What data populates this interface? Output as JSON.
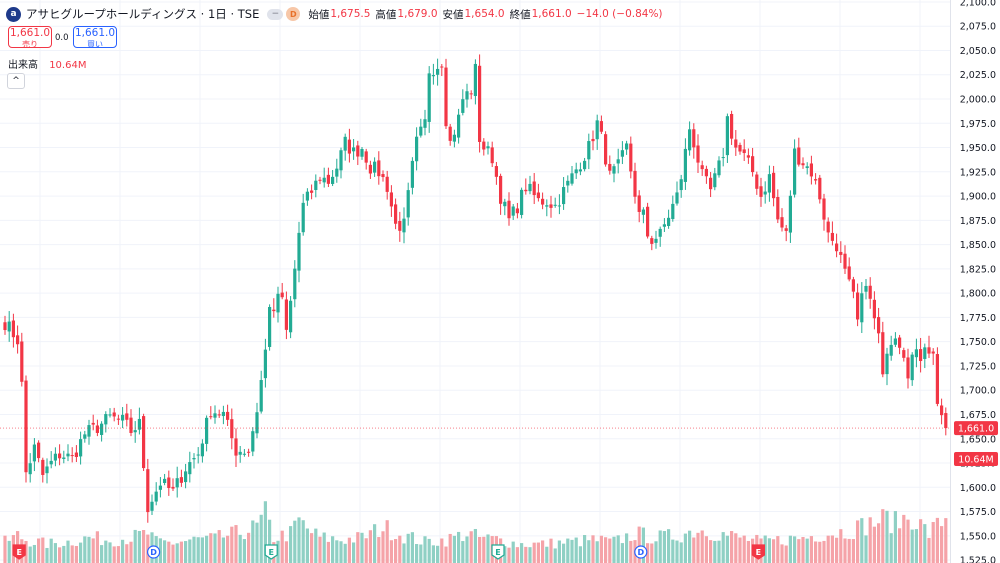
{
  "header": {
    "logo_glyph": "a",
    "title": "アサヒグループホールディングス · 1日 · TSE",
    "minus_glyph": "−",
    "badge": "D",
    "open_label": "始値",
    "open_value": "1,675.5",
    "high_label": "高値",
    "high_value": "1,679.0",
    "low_label": "安値",
    "low_value": "1,654.0",
    "close_label": "終値",
    "close_value": "1,661.0",
    "change": "−14.0 (−0.84%)"
  },
  "trade": {
    "sell_price": "1,661.0",
    "sell_label": "売り",
    "spread": "0.0",
    "buy_price": "1,661.0",
    "buy_label": "買い"
  },
  "volume_legend": {
    "label": "出来高",
    "value": "10.64M"
  },
  "collapse_glyph": "^",
  "colors": {
    "up": "#22ab94",
    "down": "#f23645",
    "vol_up": "#8fd0c4",
    "vol_down": "#f5a3a8",
    "grid": "#f0f3fa",
    "axis_text": "#131722"
  },
  "chart_data": {
    "type": "candlestick",
    "y_axis": {
      "min": 1522,
      "max": 2102,
      "ticks": [
        1525,
        1550,
        1575,
        1600,
        1625,
        1650,
        1675,
        1700,
        1725,
        1750,
        1775,
        1800,
        1825,
        1850,
        1875,
        1900,
        1925,
        1950,
        1975,
        2000,
        2025,
        2050,
        2075,
        2100
      ],
      "tick_labels": [
        "1,525.0",
        "1,550.0",
        "1,575.0",
        "1,600.0",
        "1,625.0",
        "1,650.0",
        "1,675.0",
        "1,700.0",
        "1,725.0",
        "1,750.0",
        "1,775.0",
        "1,800.0",
        "1,825.0",
        "1,850.0",
        "1,875.0",
        "1,900.0",
        "1,925.0",
        "1,950.0",
        "1,975.0",
        "2,000.0",
        "2,025.0",
        "2,050.0",
        "2,075.0",
        "2,100.0"
      ]
    },
    "last_price": 1661,
    "last_price_label": "1,661.0",
    "volume_label": "10.64M",
    "grid": true,
    "anchors": [
      [
        0,
        1770
      ],
      [
        3,
        1752
      ],
      [
        4,
        1705
      ],
      [
        5,
        1615
      ],
      [
        7,
        1640
      ],
      [
        9,
        1612
      ],
      [
        11,
        1625
      ],
      [
        13,
        1634
      ],
      [
        16,
        1630
      ],
      [
        19,
        1655
      ],
      [
        22,
        1662
      ],
      [
        25,
        1672
      ],
      [
        28,
        1668
      ],
      [
        30,
        1658
      ],
      [
        32,
        1665
      ],
      [
        34,
        1580
      ],
      [
        37,
        1605
      ],
      [
        40,
        1595
      ],
      [
        43,
        1620
      ],
      [
        46,
        1635
      ],
      [
        49,
        1680
      ],
      [
        52,
        1675
      ],
      [
        55,
        1638
      ],
      [
        58,
        1638
      ],
      [
        60,
        1680
      ],
      [
        62,
        1740
      ],
      [
        63,
        1790
      ],
      [
        64,
        1775
      ],
      [
        65,
        1800
      ],
      [
        66,
        1790
      ],
      [
        67,
        1760
      ],
      [
        68,
        1790
      ],
      [
        69,
        1825
      ],
      [
        70,
        1862
      ],
      [
        71,
        1890
      ],
      [
        73,
        1905
      ],
      [
        75,
        1920
      ],
      [
        77,
        1915
      ],
      [
        79,
        1930
      ],
      [
        81,
        1955
      ],
      [
        83,
        1945
      ],
      [
        85,
        1950
      ],
      [
        87,
        1930
      ],
      [
        89,
        1925
      ],
      [
        91,
        1910
      ],
      [
        93,
        1870
      ],
      [
        95,
        1870
      ],
      [
        97,
        1930
      ],
      [
        98,
        1955
      ],
      [
        100,
        1975
      ],
      [
        101,
        2030
      ],
      [
        103,
        2035
      ],
      [
        104,
        2040
      ],
      [
        105,
        1980
      ],
      [
        106,
        1955
      ],
      [
        108,
        1980
      ],
      [
        109,
        2000
      ],
      [
        111,
        2010
      ],
      [
        112,
        2030
      ],
      [
        113,
        1960
      ],
      [
        114,
        1950
      ],
      [
        116,
        1940
      ],
      [
        118,
        1900
      ],
      [
        120,
        1875
      ],
      [
        122,
        1890
      ],
      [
        124,
        1910
      ],
      [
        127,
        1895
      ],
      [
        129,
        1895
      ],
      [
        131,
        1890
      ],
      [
        133,
        1905
      ],
      [
        135,
        1920
      ],
      [
        137,
        1935
      ],
      [
        139,
        1950
      ],
      [
        141,
        1975
      ],
      [
        142,
        1960
      ],
      [
        144,
        1920
      ],
      [
        146,
        1930
      ],
      [
        148,
        1950
      ],
      [
        151,
        1880
      ],
      [
        152,
        1880
      ],
      [
        153,
        1860
      ],
      [
        154,
        1855
      ],
      [
        156,
        1860
      ],
      [
        158,
        1880
      ],
      [
        160,
        1900
      ],
      [
        161,
        1920
      ],
      [
        162,
        1945
      ],
      [
        163,
        1970
      ],
      [
        164,
        1955
      ],
      [
        166,
        1920
      ],
      [
        168,
        1905
      ],
      [
        170,
        1930
      ],
      [
        171,
        1945
      ],
      [
        172,
        1980
      ],
      [
        174,
        1950
      ],
      [
        176,
        1940
      ],
      [
        178,
        1925
      ],
      [
        180,
        1900
      ],
      [
        182,
        1920
      ],
      [
        184,
        1875
      ],
      [
        186,
        1860
      ],
      [
        188,
        1945
      ],
      [
        190,
        1935
      ],
      [
        192,
        1925
      ],
      [
        194,
        1900
      ],
      [
        196,
        1860
      ],
      [
        198,
        1850
      ],
      [
        200,
        1820
      ],
      [
        202,
        1795
      ],
      [
        203,
        1770
      ],
      [
        205,
        1815
      ],
      [
        206,
        1790
      ],
      [
        208,
        1755
      ],
      [
        209,
        1710
      ],
      [
        210,
        1745
      ],
      [
        212,
        1760
      ],
      [
        214,
        1740
      ],
      [
        215,
        1720
      ],
      [
        216,
        1735
      ],
      [
        218,
        1735
      ],
      [
        219,
        1750
      ],
      [
        221,
        1735
      ],
      [
        222,
        1690
      ],
      [
        223,
        1675
      ],
      [
        224,
        1661
      ]
    ],
    "volume_scale_note": "volume bars in millions",
    "volume_anchors": [
      [
        0,
        5.0
      ],
      [
        3,
        6.5
      ],
      [
        5,
        5.5
      ],
      [
        10,
        4.5
      ],
      [
        15,
        5.0
      ],
      [
        20,
        6.0
      ],
      [
        25,
        5.5
      ],
      [
        30,
        6.0
      ],
      [
        34,
        7.0
      ],
      [
        36,
        5.0
      ],
      [
        40,
        4.8
      ],
      [
        45,
        5.5
      ],
      [
        50,
        5.8
      ],
      [
        55,
        7.0
      ],
      [
        60,
        8.5
      ],
      [
        62,
        11.5
      ],
      [
        64,
        6.0
      ],
      [
        68,
        7.0
      ],
      [
        70,
        10.0
      ],
      [
        72,
        8.0
      ],
      [
        75,
        6.0
      ],
      [
        80,
        5.5
      ],
      [
        85,
        6.0
      ],
      [
        90,
        8.5
      ],
      [
        95,
        6.5
      ],
      [
        100,
        5.0
      ],
      [
        105,
        5.5
      ],
      [
        110,
        7.0
      ],
      [
        113,
        6.0
      ],
      [
        118,
        5.5
      ],
      [
        122,
        4.5
      ],
      [
        128,
        4.5
      ],
      [
        135,
        5.0
      ],
      [
        140,
        5.5
      ],
      [
        145,
        5.0
      ],
      [
        150,
        7.0
      ],
      [
        155,
        6.0
      ],
      [
        160,
        6.5
      ],
      [
        165,
        8.0
      ],
      [
        170,
        7.0
      ],
      [
        175,
        6.0
      ],
      [
        180,
        5.0
      ],
      [
        185,
        5.5
      ],
      [
        190,
        6.0
      ],
      [
        195,
        7.0
      ],
      [
        200,
        7.5
      ],
      [
        205,
        9.0
      ],
      [
        208,
        10.0
      ],
      [
        210,
        10.5
      ],
      [
        212,
        9.5
      ],
      [
        214,
        10.5
      ],
      [
        216,
        11.0
      ],
      [
        218,
        9.0
      ],
      [
        220,
        7.0
      ],
      [
        222,
        9.0
      ],
      [
        224,
        10.64
      ]
    ],
    "event_markers": [
      {
        "index": 1,
        "letter": "E",
        "kind": "earnings",
        "color": "#f23645"
      },
      {
        "index": 33,
        "letter": "D",
        "kind": "dividend",
        "color": "#2962ff"
      },
      {
        "index": 61,
        "letter": "E",
        "kind": "earnings",
        "color": "#22ab94"
      },
      {
        "index": 115,
        "letter": "E",
        "kind": "earnings",
        "color": "#22ab94"
      },
      {
        "index": 149,
        "letter": "D",
        "kind": "dividend",
        "color": "#2962ff"
      },
      {
        "index": 177,
        "letter": "E",
        "kind": "earnings",
        "color": "#f23645"
      }
    ]
  }
}
